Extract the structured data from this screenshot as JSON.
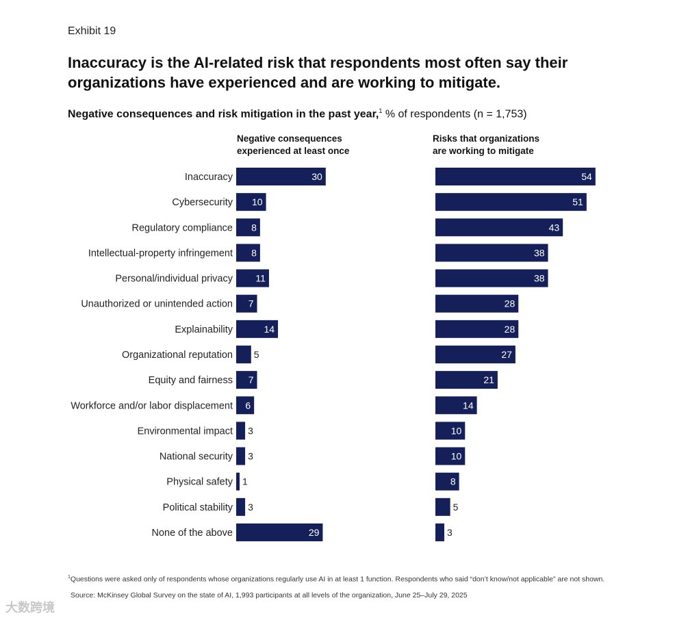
{
  "exhibit": "Exhibit 19",
  "title": "Inaccuracy is the AI-related risk that respondents most often say their organizations have experienced and are working to mitigate.",
  "subtitle": {
    "bold": "Negative consequences and risk mitigation in the past year,",
    "footnote_mark": "1",
    "regular": " % of respondents (n = 1,753)"
  },
  "footnote": {
    "mark": "1",
    "text": "Questions were asked only of respondents whose organizations regularly use AI in at least 1 function. Respondents who said “don’t know/not applicable” are not shown."
  },
  "source": "Source: McKinsey Global Survey on the state of AI, 1,993 participants at all levels of the organization, June 25–July 29, 2025",
  "watermark": "大数跨境",
  "colors": {
    "bar": "#15205a",
    "label_inside": "#ffffff",
    "label_outside": "#222222"
  },
  "chart_data": {
    "type": "bar",
    "orientation": "horizontal",
    "categories": [
      "Inaccuracy",
      "Cybersecurity",
      "Regulatory compliance",
      "Intellectual-property infringement",
      "Personal/individual privacy",
      "Unauthorized or unintended action",
      "Explainability",
      "Organizational reputation",
      "Equity and fairness",
      "Workforce and/or labor displacement",
      "Environmental impact",
      "National security",
      "Physical safety",
      "Political stability",
      "None of the above"
    ],
    "series": [
      {
        "name": "Negative consequences\nexperienced at least once",
        "values": [
          30,
          10,
          8,
          8,
          11,
          7,
          14,
          5,
          7,
          6,
          3,
          3,
          1,
          3,
          29
        ]
      },
      {
        "name": "Risks that organizations\nare working to mitigate",
        "values": [
          54,
          51,
          43,
          38,
          38,
          28,
          28,
          27,
          21,
          14,
          10,
          10,
          8,
          5,
          3
        ]
      }
    ],
    "unit": "% of respondents"
  }
}
